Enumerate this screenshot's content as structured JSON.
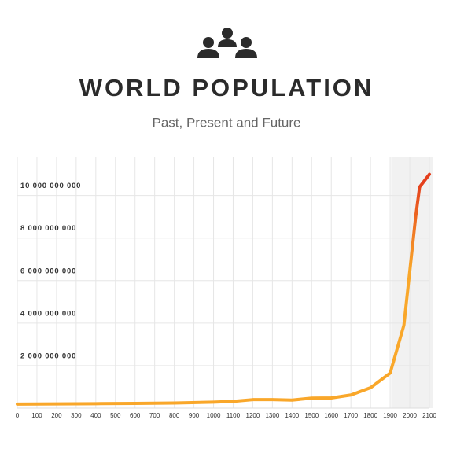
{
  "chart_data": {
    "type": "line",
    "title": "WORLD POPULATION",
    "subtitle": "Past, Present and Future",
    "x": [
      0,
      200,
      400,
      600,
      800,
      1000,
      1100,
      1200,
      1300,
      1400,
      1500,
      1600,
      1700,
      1800,
      1900,
      1970,
      2030,
      2050,
      2100
    ],
    "series": [
      {
        "color": "#f9a72a",
        "color_end": "#e43e1c",
        "values": [
          190000000,
          200000000,
          210000000,
          220000000,
          240000000,
          280000000,
          320000000,
          400000000,
          400000000,
          380000000,
          470000000,
          480000000,
          620000000,
          960000000,
          1650000000,
          3900000000,
          9000000000,
          10400000000,
          11000000000
        ]
      }
    ],
    "xlim": [
      0,
      2100
    ],
    "xticks": [
      0,
      100,
      200,
      300,
      400,
      500,
      600,
      700,
      800,
      900,
      1000,
      1100,
      1200,
      1300,
      1400,
      1500,
      1600,
      1700,
      1800,
      1900,
      2000,
      2100
    ],
    "ylim": [
      0,
      11800000000
    ],
    "yticks": [
      {
        "value": 2000000000,
        "label": "2 000 000 000"
      },
      {
        "value": 4000000000,
        "label": "4 000 000 000"
      },
      {
        "value": 6000000000,
        "label": "6 000 000 000"
      },
      {
        "value": 8000000000,
        "label": "8 000 000 000"
      },
      {
        "value": 10000000000,
        "label": "10 000 000 000"
      }
    ],
    "shaded_xrange": [
      1905,
      2120
    ],
    "grid": true
  }
}
